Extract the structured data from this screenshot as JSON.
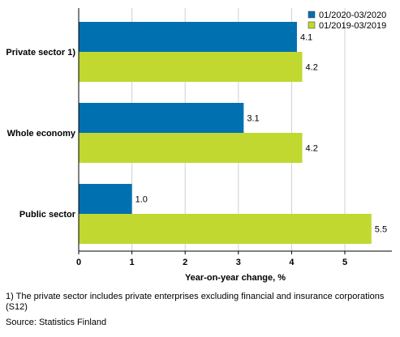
{
  "chart_data": {
    "type": "bar",
    "orientation": "horizontal",
    "categories": [
      "Private sector 1)",
      "Whole economy",
      "Public sector"
    ],
    "series": [
      {
        "name": "01/2020-03/2020",
        "color": "#0070b0",
        "values": [
          4.1,
          3.1,
          1.0
        ],
        "labels": [
          "4.1",
          "3.1",
          "1.0"
        ]
      },
      {
        "name": "01/2019-03/2019",
        "color": "#c0d830",
        "values": [
          4.2,
          4.2,
          5.5
        ],
        "labels": [
          "4.2",
          "4.2",
          "5.5"
        ]
      }
    ],
    "xlim": [
      0,
      5.8
    ],
    "xticks": [
      "0",
      "1",
      "2",
      "3",
      "4",
      "5"
    ],
    "xlabel": "Year-on-year change, %",
    "grid": true,
    "legend_position": "top-right"
  },
  "footnote": "1) The private sector includes private enterprises excluding financial and insurance corporations (S12)",
  "source": "Source: Statistics Finland"
}
